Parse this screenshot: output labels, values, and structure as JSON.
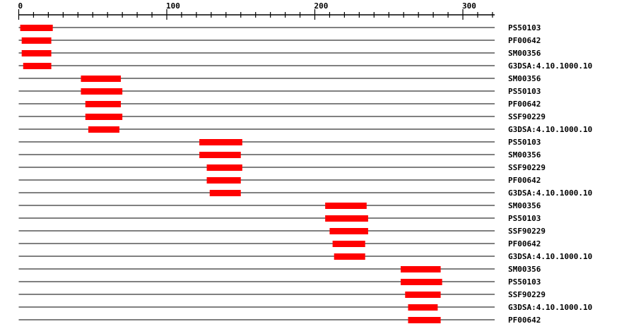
{
  "axis": {
    "min": 0,
    "max": 320,
    "major_ticks": [
      0,
      100,
      200,
      300
    ],
    "minor_step": 10
  },
  "bar_color": "#ff0000",
  "tracks": [
    {
      "label": "PS50103",
      "start": 1,
      "end": 23
    },
    {
      "label": "PF00642",
      "start": 2,
      "end": 22
    },
    {
      "label": "SM00356",
      "start": 2,
      "end": 22
    },
    {
      "label": "G3DSA:4.10.1000.10",
      "start": 3,
      "end": 22
    },
    {
      "label": "SM00356",
      "start": 42,
      "end": 69
    },
    {
      "label": "PS50103",
      "start": 42,
      "end": 70
    },
    {
      "label": "PF00642",
      "start": 45,
      "end": 69
    },
    {
      "label": "SSF90229",
      "start": 45,
      "end": 70
    },
    {
      "label": "G3DSA:4.10.1000.10",
      "start": 47,
      "end": 68
    },
    {
      "label": "PS50103",
      "start": 122,
      "end": 151
    },
    {
      "label": "SM00356",
      "start": 122,
      "end": 150
    },
    {
      "label": "SSF90229",
      "start": 127,
      "end": 151
    },
    {
      "label": "PF00642",
      "start": 127,
      "end": 150
    },
    {
      "label": "G3DSA:4.10.1000.10",
      "start": 129,
      "end": 150
    },
    {
      "label": "SM00356",
      "start": 207,
      "end": 235
    },
    {
      "label": "PS50103",
      "start": 207,
      "end": 236
    },
    {
      "label": "SSF90229",
      "start": 210,
      "end": 236
    },
    {
      "label": "PF00642",
      "start": 212,
      "end": 234
    },
    {
      "label": "G3DSA:4.10.1000.10",
      "start": 213,
      "end": 234
    },
    {
      "label": "SM00356",
      "start": 258,
      "end": 285
    },
    {
      "label": "PS50103",
      "start": 258,
      "end": 286
    },
    {
      "label": "SSF90229",
      "start": 261,
      "end": 285
    },
    {
      "label": "G3DSA:4.10.1000.10",
      "start": 263,
      "end": 283
    },
    {
      "label": "PF00642",
      "start": 263,
      "end": 285
    }
  ]
}
